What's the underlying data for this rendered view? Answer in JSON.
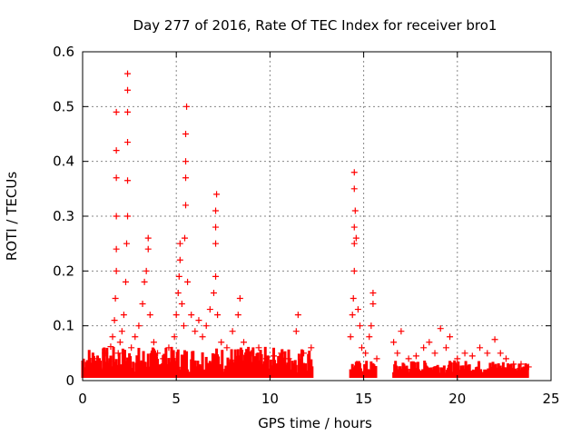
{
  "chart_data": {
    "type": "scatter",
    "title": "Day 277 of 2016, Rate Of TEC Index for receiver bro1",
    "xlabel": "GPS time / hours",
    "ylabel": "ROTI / TECUs",
    "xlim": [
      0,
      25
    ],
    "ylim": [
      0,
      0.6
    ],
    "xticks": [
      "0",
      "5",
      "10",
      "15",
      "20",
      "25"
    ],
    "yticks": [
      "0",
      "0.1",
      "0.2",
      "0.3",
      "0.4",
      "0.5",
      "0.6"
    ],
    "grid": true,
    "marker": "+",
    "color": "#ff0000",
    "series": [
      {
        "points": [
          [
            0.2,
            0.012
          ],
          [
            0.4,
            0.03
          ],
          [
            0.6,
            0.022
          ],
          [
            0.8,
            0.04
          ],
          [
            1.0,
            0.018
          ],
          [
            1.2,
            0.05
          ],
          [
            1.4,
            0.035
          ],
          [
            1.5,
            0.062
          ],
          [
            1.6,
            0.08
          ],
          [
            1.7,
            0.11
          ],
          [
            1.75,
            0.15
          ],
          [
            1.8,
            0.2
          ],
          [
            1.8,
            0.24
          ],
          [
            1.8,
            0.3
          ],
          [
            1.8,
            0.37
          ],
          [
            1.8,
            0.42
          ],
          [
            1.8,
            0.49
          ],
          [
            1.9,
            0.05
          ],
          [
            2.0,
            0.07
          ],
          [
            2.1,
            0.09
          ],
          [
            2.2,
            0.12
          ],
          [
            2.3,
            0.18
          ],
          [
            2.35,
            0.25
          ],
          [
            2.4,
            0.3
          ],
          [
            2.4,
            0.365
          ],
          [
            2.4,
            0.435
          ],
          [
            2.4,
            0.49
          ],
          [
            2.4,
            0.53
          ],
          [
            2.4,
            0.56
          ],
          [
            2.6,
            0.06
          ],
          [
            2.8,
            0.08
          ],
          [
            3.0,
            0.1
          ],
          [
            3.2,
            0.14
          ],
          [
            3.3,
            0.18
          ],
          [
            3.4,
            0.2
          ],
          [
            3.5,
            0.24
          ],
          [
            3.5,
            0.26
          ],
          [
            3.6,
            0.12
          ],
          [
            3.8,
            0.07
          ],
          [
            4.0,
            0.05
          ],
          [
            4.3,
            0.04
          ],
          [
            4.6,
            0.06
          ],
          [
            4.9,
            0.08
          ],
          [
            5.0,
            0.12
          ],
          [
            5.1,
            0.16
          ],
          [
            5.15,
            0.19
          ],
          [
            5.2,
            0.22
          ],
          [
            5.2,
            0.25
          ],
          [
            5.3,
            0.14
          ],
          [
            5.4,
            0.1
          ],
          [
            5.45,
            0.26
          ],
          [
            5.5,
            0.32
          ],
          [
            5.5,
            0.37
          ],
          [
            5.5,
            0.4
          ],
          [
            5.5,
            0.45
          ],
          [
            5.55,
            0.5
          ],
          [
            5.6,
            0.18
          ],
          [
            5.8,
            0.12
          ],
          [
            6.0,
            0.09
          ],
          [
            6.2,
            0.11
          ],
          [
            6.4,
            0.08
          ],
          [
            6.6,
            0.1
          ],
          [
            6.8,
            0.13
          ],
          [
            7.0,
            0.16
          ],
          [
            7.1,
            0.19
          ],
          [
            7.1,
            0.25
          ],
          [
            7.1,
            0.28
          ],
          [
            7.1,
            0.31
          ],
          [
            7.15,
            0.34
          ],
          [
            7.2,
            0.12
          ],
          [
            7.4,
            0.07
          ],
          [
            7.7,
            0.06
          ],
          [
            8.0,
            0.09
          ],
          [
            8.3,
            0.12
          ],
          [
            8.4,
            0.15
          ],
          [
            8.6,
            0.07
          ],
          [
            9.0,
            0.05
          ],
          [
            9.4,
            0.06
          ],
          [
            9.8,
            0.04
          ],
          [
            10.2,
            0.045
          ],
          [
            10.6,
            0.05
          ],
          [
            11.0,
            0.04
          ],
          [
            11.4,
            0.09
          ],
          [
            11.5,
            0.12
          ],
          [
            11.8,
            0.05
          ],
          [
            12.2,
            0.06
          ],
          [
            14.3,
            0.08
          ],
          [
            14.4,
            0.12
          ],
          [
            14.45,
            0.15
          ],
          [
            14.5,
            0.2
          ],
          [
            14.5,
            0.25
          ],
          [
            14.5,
            0.28
          ],
          [
            14.55,
            0.31
          ],
          [
            14.5,
            0.35
          ],
          [
            14.5,
            0.38
          ],
          [
            14.6,
            0.26
          ],
          [
            14.7,
            0.13
          ],
          [
            14.8,
            0.1
          ],
          [
            14.9,
            0.06
          ],
          [
            15.1,
            0.05
          ],
          [
            15.3,
            0.08
          ],
          [
            15.4,
            0.1
          ],
          [
            15.5,
            0.14
          ],
          [
            15.5,
            0.16
          ],
          [
            15.7,
            0.04
          ],
          [
            16.6,
            0.07
          ],
          [
            16.8,
            0.05
          ],
          [
            17.0,
            0.09
          ],
          [
            17.4,
            0.04
          ],
          [
            17.8,
            0.045
          ],
          [
            18.2,
            0.06
          ],
          [
            18.5,
            0.07
          ],
          [
            18.8,
            0.05
          ],
          [
            19.1,
            0.095
          ],
          [
            19.4,
            0.06
          ],
          [
            19.6,
            0.08
          ],
          [
            20.0,
            0.04
          ],
          [
            20.4,
            0.05
          ],
          [
            20.8,
            0.045
          ],
          [
            21.2,
            0.06
          ],
          [
            21.6,
            0.05
          ],
          [
            22.0,
            0.075
          ],
          [
            22.3,
            0.05
          ],
          [
            22.6,
            0.04
          ],
          [
            23.0,
            0.03
          ],
          [
            23.4,
            0.03
          ],
          [
            23.8,
            0.025
          ]
        ]
      }
    ]
  }
}
